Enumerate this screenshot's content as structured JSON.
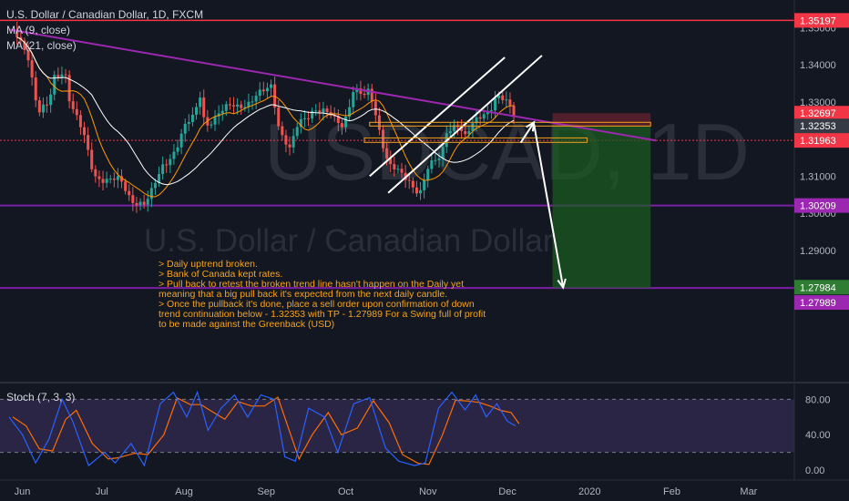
{
  "header": {
    "symbol_title": "U.S. Dollar / Canadian Dollar, 1D, FXCM",
    "ma1_label": "MA (9, close)",
    "ma2_label": "MA (21, close)"
  },
  "watermark": {
    "symbol": "USDCAD, 1D",
    "name": "U.S. Dollar / Canadian Dollar"
  },
  "notes": [
    "> Daily uptrend broken.",
    "> Bank of Canada kept rates.",
    "> Pull back to retest the broken trend line hasn't happen on the Daily yet",
    "meaning that a big pull back it's expected from the next daily candle.",
    "> Once the pullback it's done, place a sell order upon confirmation of down",
    "trend continuation below - 1.32353 with TP - 1.27989 For a Swing full of profit",
    "to be made against the Greenback (USD)"
  ],
  "stoch": {
    "label": "Stoch (7, 3, 3)"
  },
  "colors": {
    "background": "#131722",
    "up": "#26a69a",
    "down": "#ef5350",
    "trendline": "#9c27b0",
    "support": "#7b1fa2",
    "resistance_red": "#f23645",
    "ma9": "#ff9800",
    "ma21": "#ffffff",
    "stoch_k": "#2962ff",
    "stoch_d": "#ff6d00",
    "stoch_band": "#7e57c2",
    "note": "#f7a21b"
  },
  "chart_data": {
    "type": "candlestick",
    "title": "U.S. Dollar / Canadian Dollar, 1D, FXCM",
    "price_axis": {
      "ticks": [
        1.35,
        1.34,
        1.33,
        1.32,
        1.31,
        1.3,
        1.29,
        1.28
      ],
      "tick_labels": [
        "1.35000",
        "1.34000",
        "1.33000",
        "1.32000",
        "1.31000",
        "1.30000",
        "1.29000",
        "1.28000"
      ]
    },
    "time_axis": {
      "labels": [
        "Jun",
        "Jul",
        "Aug",
        "Sep",
        "Oct",
        "Nov",
        "Dec",
        "2020",
        "Feb",
        "Mar"
      ]
    },
    "price_labels": [
      {
        "value": "1.35197",
        "color": "#f23645"
      },
      {
        "value": "1.32697",
        "color": "#f23645"
      },
      {
        "value": "1.32353",
        "color": "#363a45"
      },
      {
        "value": "1.31963",
        "color": "#f23645"
      },
      {
        "value": "1.30209",
        "color": "#9c27b0"
      },
      {
        "value": "1.27984",
        "color": "#2e7d32"
      },
      {
        "value": "1.27989",
        "color": "#9c27b0"
      }
    ],
    "levels": {
      "resistance": 1.35197,
      "support_1": 1.30209,
      "support_2": 1.27989,
      "entry": 1.32353,
      "last": 1.31963,
      "stop": 1.32697,
      "target": 1.27984
    },
    "trendline": {
      "from_date": "2019-05-27",
      "from_price": 1.3495,
      "to_date": "2020-01-26",
      "to_price": 1.3196
    },
    "short_position": {
      "entry": 1.32353,
      "stop": 1.32697,
      "target": 1.27984,
      "start_date": "2019-12-18",
      "end_date": "2020-01-24"
    },
    "channel": {
      "lower_from": [
        "2019-10-17",
        1.3055
      ],
      "lower_to": [
        "2019-12-14",
        1.3425
      ],
      "upper_from": [
        "2019-10-10",
        1.31
      ],
      "upper_to": [
        "2019-11-30",
        1.342
      ]
    },
    "close_anchors": [
      [
        "2019-05-30",
        1.3475
      ],
      [
        "2019-06-03",
        1.3435
      ],
      [
        "2019-06-07",
        1.327
      ],
      [
        "2019-06-11",
        1.329
      ],
      [
        "2019-06-13",
        1.3365
      ],
      [
        "2019-06-17",
        1.339
      ],
      [
        "2019-06-19",
        1.33
      ],
      [
        "2019-06-24",
        1.321
      ],
      [
        "2019-06-28",
        1.3105
      ],
      [
        "2019-07-03",
        1.309
      ],
      [
        "2019-07-08",
        1.3085
      ],
      [
        "2019-07-12",
        1.304
      ],
      [
        "2019-07-17",
        1.3025
      ],
      [
        "2019-07-19",
        1.304
      ],
      [
        "2019-07-24",
        1.313
      ],
      [
        "2019-07-29",
        1.3175
      ],
      [
        "2019-08-01",
        1.3225
      ],
      [
        "2019-08-05",
        1.3265
      ],
      [
        "2019-08-07",
        1.3325
      ],
      [
        "2019-08-09",
        1.324
      ],
      [
        "2019-08-13",
        1.3255
      ],
      [
        "2019-08-19",
        1.3295
      ],
      [
        "2019-08-26",
        1.3295
      ],
      [
        "2019-08-29",
        1.3315
      ],
      [
        "2019-09-03",
        1.335
      ],
      [
        "2019-09-06",
        1.3225
      ],
      [
        "2019-09-10",
        1.3165
      ],
      [
        "2019-09-13",
        1.324
      ],
      [
        "2019-09-19",
        1.3285
      ],
      [
        "2019-09-24",
        1.3265
      ],
      [
        "2019-09-30",
        1.324
      ],
      [
        "2019-10-04",
        1.3335
      ],
      [
        "2019-10-08",
        1.331
      ],
      [
        "2019-10-10",
        1.333
      ],
      [
        "2019-10-14",
        1.322
      ],
      [
        "2019-10-17",
        1.3135
      ],
      [
        "2019-10-21",
        1.3105
      ],
      [
        "2019-10-25",
        1.3085
      ],
      [
        "2019-10-29",
        1.306
      ],
      [
        "2019-11-01",
        1.312
      ],
      [
        "2019-11-06",
        1.315
      ],
      [
        "2019-11-08",
        1.3225
      ],
      [
        "2019-11-12",
        1.3245
      ],
      [
        "2019-11-15",
        1.32
      ],
      [
        "2019-11-20",
        1.326
      ],
      [
        "2019-11-25",
        1.329
      ],
      [
        "2019-11-27",
        1.3315
      ],
      [
        "2019-12-02",
        1.3285
      ],
      [
        "2019-12-03",
        1.331
      ],
      [
        "2019-12-04",
        1.3196
      ]
    ],
    "stochastic": {
      "name": "Stoch (7, 3, 3)",
      "ticks": [
        80,
        40,
        0
      ],
      "tick_labels": [
        "80.00",
        "40.00",
        "0.00"
      ],
      "band": [
        20,
        80
      ],
      "k_anchors": [
        [
          "2019-05-27",
          60
        ],
        [
          "2019-06-01",
          40
        ],
        [
          "2019-06-06",
          8
        ],
        [
          "2019-06-11",
          35
        ],
        [
          "2019-06-16",
          80
        ],
        [
          "2019-06-20",
          55
        ],
        [
          "2019-06-26",
          5
        ],
        [
          "2019-07-02",
          20
        ],
        [
          "2019-07-06",
          8
        ],
        [
          "2019-07-12",
          30
        ],
        [
          "2019-07-17",
          5
        ],
        [
          "2019-07-23",
          75
        ],
        [
          "2019-07-28",
          88
        ],
        [
          "2019-08-02",
          60
        ],
        [
          "2019-08-06",
          88
        ],
        [
          "2019-08-10",
          45
        ],
        [
          "2019-08-15",
          70
        ],
        [
          "2019-08-20",
          85
        ],
        [
          "2019-08-25",
          60
        ],
        [
          "2019-08-30",
          85
        ],
        [
          "2019-09-04",
          80
        ],
        [
          "2019-09-08",
          15
        ],
        [
          "2019-09-12",
          10
        ],
        [
          "2019-09-17",
          70
        ],
        [
          "2019-09-23",
          60
        ],
        [
          "2019-09-28",
          20
        ],
        [
          "2019-10-04",
          75
        ],
        [
          "2019-10-10",
          82
        ],
        [
          "2019-10-16",
          25
        ],
        [
          "2019-10-21",
          10
        ],
        [
          "2019-10-27",
          5
        ],
        [
          "2019-10-31",
          8
        ],
        [
          "2019-11-05",
          70
        ],
        [
          "2019-11-10",
          88
        ],
        [
          "2019-11-15",
          68
        ],
        [
          "2019-11-19",
          85
        ],
        [
          "2019-11-23",
          60
        ],
        [
          "2019-11-27",
          75
        ],
        [
          "2019-12-01",
          55
        ],
        [
          "2019-12-04",
          50
        ]
      ]
    }
  }
}
